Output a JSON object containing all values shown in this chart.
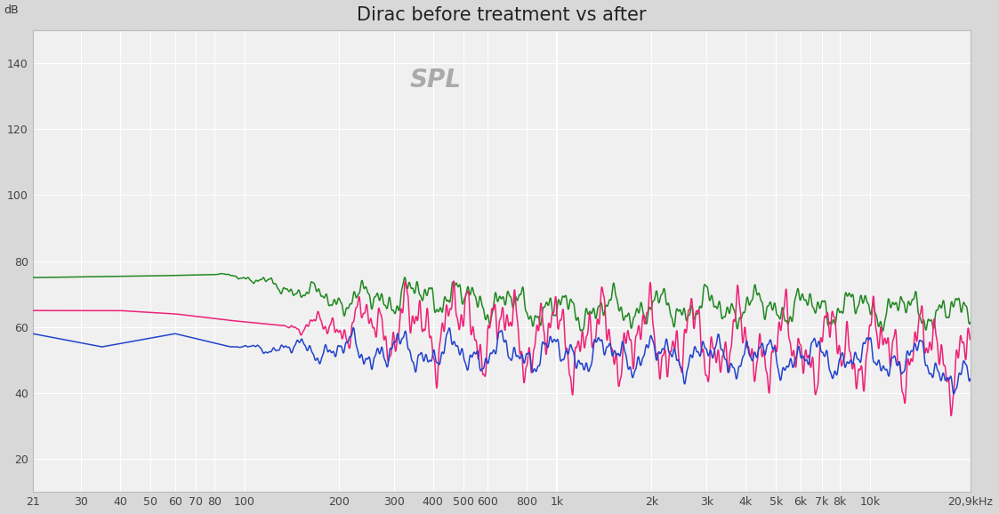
{
  "title": "Dirac before treatment vs after",
  "spl_label": "SPL",
  "ylabel": "dB",
  "background_color": "#d8d8d8",
  "plot_bg_color": "#f0f0f0",
  "grid_color": "#ffffff",
  "title_color": "#222222",
  "spl_color": "#aaaaaa",
  "ylim": [
    10,
    150
  ],
  "yticks": [
    20,
    40,
    60,
    80,
    100,
    120,
    140
  ],
  "xmin": 21,
  "xmax": 20900,
  "line_colors": [
    "#228822",
    "#ee2277",
    "#2244cc"
  ],
  "line_width": 1.1,
  "xtick_labels": [
    "21",
    "30",
    "40",
    "50",
    "60",
    "70",
    "80",
    "100",
    "200",
    "300",
    "400",
    "500",
    "600",
    "800",
    "1k",
    "2k",
    "3k",
    "4k",
    "5k",
    "6k",
    "7k",
    "8k",
    "10k",
    "20,9kHz"
  ],
  "xtick_freqs": [
    21,
    30,
    40,
    50,
    60,
    70,
    80,
    100,
    200,
    300,
    400,
    500,
    600,
    800,
    1000,
    2000,
    3000,
    4000,
    5000,
    6000,
    7000,
    8000,
    10000,
    20900
  ],
  "vline_freq": 1000,
  "vline_color": "#bbbbbb"
}
